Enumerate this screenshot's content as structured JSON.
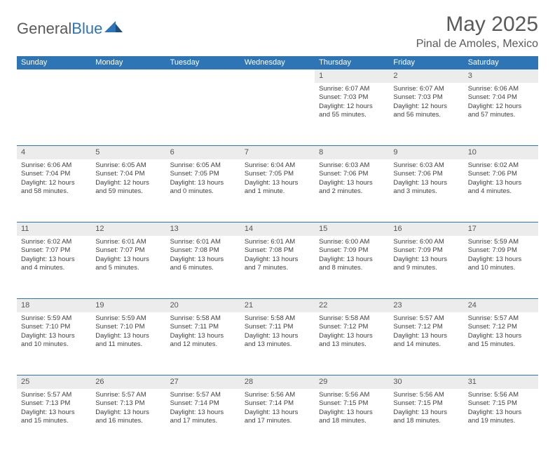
{
  "brand": {
    "part1": "General",
    "part2": "Blue"
  },
  "title": "May 2025",
  "location": "Pinal de Amoles, Mexico",
  "colors": {
    "header_bg": "#2e75b6",
    "header_text": "#ffffff",
    "daynum_bg": "#ececec",
    "rule": "#2e75b6",
    "body_text": "#404040"
  },
  "weekdays": [
    "Sunday",
    "Monday",
    "Tuesday",
    "Wednesday",
    "Thursday",
    "Friday",
    "Saturday"
  ],
  "weeks": [
    [
      null,
      null,
      null,
      null,
      {
        "n": "1",
        "sr": "Sunrise: 6:07 AM",
        "ss": "Sunset: 7:03 PM",
        "d1": "Daylight: 12 hours",
        "d2": "and 55 minutes."
      },
      {
        "n": "2",
        "sr": "Sunrise: 6:07 AM",
        "ss": "Sunset: 7:03 PM",
        "d1": "Daylight: 12 hours",
        "d2": "and 56 minutes."
      },
      {
        "n": "3",
        "sr": "Sunrise: 6:06 AM",
        "ss": "Sunset: 7:04 PM",
        "d1": "Daylight: 12 hours",
        "d2": "and 57 minutes."
      }
    ],
    [
      {
        "n": "4",
        "sr": "Sunrise: 6:06 AM",
        "ss": "Sunset: 7:04 PM",
        "d1": "Daylight: 12 hours",
        "d2": "and 58 minutes."
      },
      {
        "n": "5",
        "sr": "Sunrise: 6:05 AM",
        "ss": "Sunset: 7:04 PM",
        "d1": "Daylight: 12 hours",
        "d2": "and 59 minutes."
      },
      {
        "n": "6",
        "sr": "Sunrise: 6:05 AM",
        "ss": "Sunset: 7:05 PM",
        "d1": "Daylight: 13 hours",
        "d2": "and 0 minutes."
      },
      {
        "n": "7",
        "sr": "Sunrise: 6:04 AM",
        "ss": "Sunset: 7:05 PM",
        "d1": "Daylight: 13 hours",
        "d2": "and 1 minute."
      },
      {
        "n": "8",
        "sr": "Sunrise: 6:03 AM",
        "ss": "Sunset: 7:06 PM",
        "d1": "Daylight: 13 hours",
        "d2": "and 2 minutes."
      },
      {
        "n": "9",
        "sr": "Sunrise: 6:03 AM",
        "ss": "Sunset: 7:06 PM",
        "d1": "Daylight: 13 hours",
        "d2": "and 3 minutes."
      },
      {
        "n": "10",
        "sr": "Sunrise: 6:02 AM",
        "ss": "Sunset: 7:06 PM",
        "d1": "Daylight: 13 hours",
        "d2": "and 4 minutes."
      }
    ],
    [
      {
        "n": "11",
        "sr": "Sunrise: 6:02 AM",
        "ss": "Sunset: 7:07 PM",
        "d1": "Daylight: 13 hours",
        "d2": "and 4 minutes."
      },
      {
        "n": "12",
        "sr": "Sunrise: 6:01 AM",
        "ss": "Sunset: 7:07 PM",
        "d1": "Daylight: 13 hours",
        "d2": "and 5 minutes."
      },
      {
        "n": "13",
        "sr": "Sunrise: 6:01 AM",
        "ss": "Sunset: 7:08 PM",
        "d1": "Daylight: 13 hours",
        "d2": "and 6 minutes."
      },
      {
        "n": "14",
        "sr": "Sunrise: 6:01 AM",
        "ss": "Sunset: 7:08 PM",
        "d1": "Daylight: 13 hours",
        "d2": "and 7 minutes."
      },
      {
        "n": "15",
        "sr": "Sunrise: 6:00 AM",
        "ss": "Sunset: 7:09 PM",
        "d1": "Daylight: 13 hours",
        "d2": "and 8 minutes."
      },
      {
        "n": "16",
        "sr": "Sunrise: 6:00 AM",
        "ss": "Sunset: 7:09 PM",
        "d1": "Daylight: 13 hours",
        "d2": "and 9 minutes."
      },
      {
        "n": "17",
        "sr": "Sunrise: 5:59 AM",
        "ss": "Sunset: 7:09 PM",
        "d1": "Daylight: 13 hours",
        "d2": "and 10 minutes."
      }
    ],
    [
      {
        "n": "18",
        "sr": "Sunrise: 5:59 AM",
        "ss": "Sunset: 7:10 PM",
        "d1": "Daylight: 13 hours",
        "d2": "and 10 minutes."
      },
      {
        "n": "19",
        "sr": "Sunrise: 5:59 AM",
        "ss": "Sunset: 7:10 PM",
        "d1": "Daylight: 13 hours",
        "d2": "and 11 minutes."
      },
      {
        "n": "20",
        "sr": "Sunrise: 5:58 AM",
        "ss": "Sunset: 7:11 PM",
        "d1": "Daylight: 13 hours",
        "d2": "and 12 minutes."
      },
      {
        "n": "21",
        "sr": "Sunrise: 5:58 AM",
        "ss": "Sunset: 7:11 PM",
        "d1": "Daylight: 13 hours",
        "d2": "and 13 minutes."
      },
      {
        "n": "22",
        "sr": "Sunrise: 5:58 AM",
        "ss": "Sunset: 7:12 PM",
        "d1": "Daylight: 13 hours",
        "d2": "and 13 minutes."
      },
      {
        "n": "23",
        "sr": "Sunrise: 5:57 AM",
        "ss": "Sunset: 7:12 PM",
        "d1": "Daylight: 13 hours",
        "d2": "and 14 minutes."
      },
      {
        "n": "24",
        "sr": "Sunrise: 5:57 AM",
        "ss": "Sunset: 7:12 PM",
        "d1": "Daylight: 13 hours",
        "d2": "and 15 minutes."
      }
    ],
    [
      {
        "n": "25",
        "sr": "Sunrise: 5:57 AM",
        "ss": "Sunset: 7:13 PM",
        "d1": "Daylight: 13 hours",
        "d2": "and 15 minutes."
      },
      {
        "n": "26",
        "sr": "Sunrise: 5:57 AM",
        "ss": "Sunset: 7:13 PM",
        "d1": "Daylight: 13 hours",
        "d2": "and 16 minutes."
      },
      {
        "n": "27",
        "sr": "Sunrise: 5:57 AM",
        "ss": "Sunset: 7:14 PM",
        "d1": "Daylight: 13 hours",
        "d2": "and 17 minutes."
      },
      {
        "n": "28",
        "sr": "Sunrise: 5:56 AM",
        "ss": "Sunset: 7:14 PM",
        "d1": "Daylight: 13 hours",
        "d2": "and 17 minutes."
      },
      {
        "n": "29",
        "sr": "Sunrise: 5:56 AM",
        "ss": "Sunset: 7:15 PM",
        "d1": "Daylight: 13 hours",
        "d2": "and 18 minutes."
      },
      {
        "n": "30",
        "sr": "Sunrise: 5:56 AM",
        "ss": "Sunset: 7:15 PM",
        "d1": "Daylight: 13 hours",
        "d2": "and 18 minutes."
      },
      {
        "n": "31",
        "sr": "Sunrise: 5:56 AM",
        "ss": "Sunset: 7:15 PM",
        "d1": "Daylight: 13 hours",
        "d2": "and 19 minutes."
      }
    ]
  ]
}
